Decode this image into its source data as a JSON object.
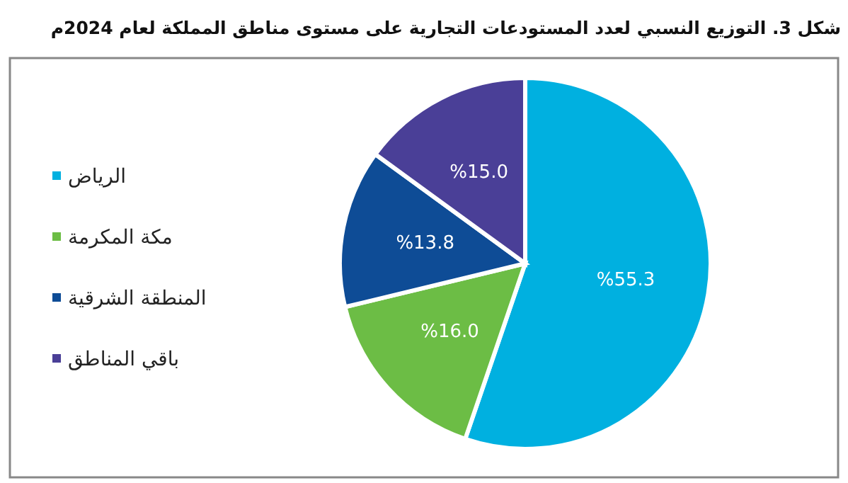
{
  "chart_data": {
    "type": "pie",
    "title": "شكل 3. التوزيع النسبي لعدد المستودعات التجارية على مستوى مناطق المملكة لعام 2024م",
    "categories": [
      "الرياض",
      "مكة المكرمة",
      "المنطقة الشرقية",
      "باقي المناطق"
    ],
    "values": [
      55.3,
      16.0,
      13.8,
      15.0
    ],
    "value_labels": [
      "%55.3",
      "%16.0",
      "%13.8",
      "%15.0"
    ],
    "colors": [
      "#00b0e0",
      "#6cbd45",
      "#0e4c96",
      "#4a3f97"
    ],
    "legend": "left"
  }
}
